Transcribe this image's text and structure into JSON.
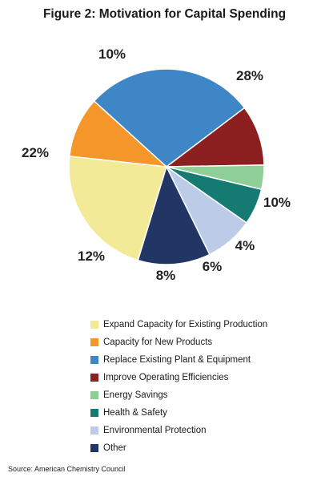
{
  "chart_data": {
    "type": "pie",
    "title": "Figure 2: Motivation for Capital Spending",
    "categories": [
      "Expand Capacity for Existing Production",
      "Capacity for New Products",
      "Replace Existing Plant & Equipment",
      "Improve Operating Efficiencies",
      "Energy Savings",
      "Health & Safety",
      "Environmental Protection",
      "Other"
    ],
    "values": [
      22,
      10,
      28,
      10,
      4,
      6,
      8,
      12
    ],
    "value_labels": [
      "22%",
      "10%",
      "28%",
      "10%",
      "4%",
      "6%",
      "8%",
      "12%"
    ],
    "colors": [
      "#f2ea96",
      "#f5962a",
      "#3f86c6",
      "#8c1f1f",
      "#8fce97",
      "#147a72",
      "#bccbe8",
      "#213665"
    ],
    "legend_position": "bottom",
    "source": "Source: American Chemistry Council"
  }
}
